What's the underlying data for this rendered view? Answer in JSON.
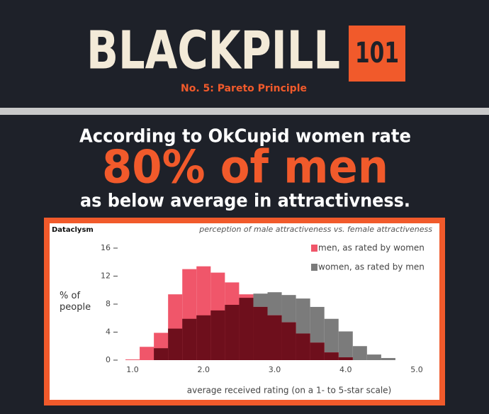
{
  "header": {
    "title": "BLACKPILL",
    "badge": "101",
    "subtitle": "No. 5: Pareto Principle"
  },
  "headline": [
    "According to OkCupid women rate",
    "80% of men",
    "as below average in attractivness."
  ],
  "chart_data": {
    "type": "histogram",
    "source": "Dataclysm",
    "title": "perception of male attractiveness vs. female attractiveness",
    "x_label": "average received rating (on a 1- to 5-star scale)",
    "y_label": "% of people",
    "bins": [
      0.9,
      1.1,
      1.3,
      1.5,
      1.7,
      1.9,
      2.1,
      2.3,
      2.5,
      2.7,
      2.9,
      3.1,
      3.3,
      3.5,
      3.7,
      3.9,
      4.1,
      4.3,
      4.5,
      4.7
    ],
    "series": [
      {
        "name": "men, as rated by women",
        "color": "#f0566a",
        "values": [
          0.1,
          1.9,
          3.9,
          9.4,
          13.0,
          13.4,
          12.5,
          11.1,
          9.4,
          7.6,
          6.4,
          5.4,
          3.8,
          2.5,
          1.1,
          0.4,
          0,
          0,
          0
        ]
      },
      {
        "name": "women, as rated by men",
        "color": "#7b7b7b",
        "values": [
          0,
          0,
          1.7,
          4.5,
          5.9,
          6.4,
          7.1,
          7.9,
          8.9,
          9.5,
          9.7,
          9.3,
          8.8,
          7.6,
          5.9,
          4.1,
          2.0,
          0.8,
          0.3
        ]
      }
    ],
    "overlap_color": "#6e0f1c",
    "xlim": [
      0.8,
      5.0
    ],
    "xticks": [
      {
        "value": 1,
        "label": "1.0"
      },
      {
        "value": 2,
        "label": "2.0"
      },
      {
        "value": 3,
        "label": "3.0"
      },
      {
        "value": 4,
        "label": "4.0"
      },
      {
        "value": 5,
        "label": "5.0"
      }
    ],
    "ylim": [
      0,
      16
    ],
    "yticks": [
      0,
      4,
      8,
      12,
      16
    ],
    "legend": "upper right"
  }
}
